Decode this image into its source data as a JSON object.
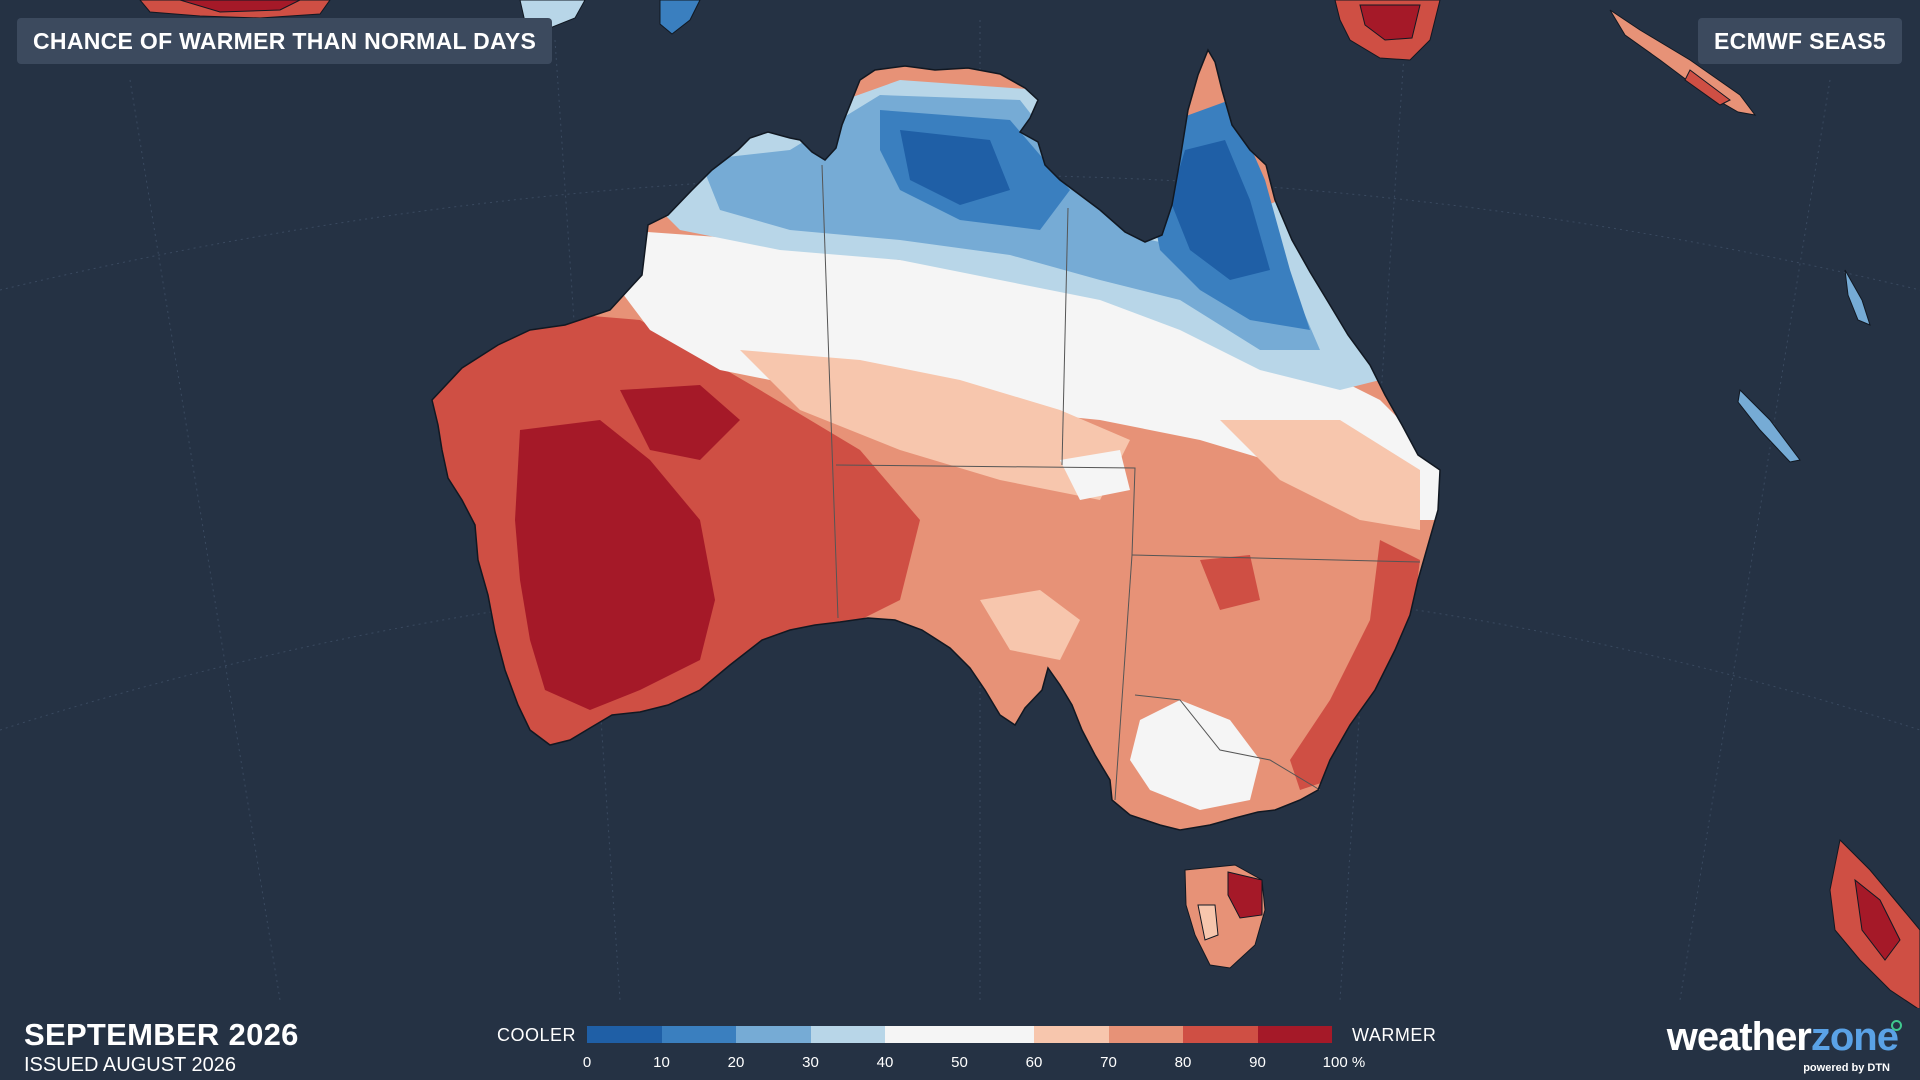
{
  "header": {
    "title": "CHANCE OF WARMER THAN NORMAL DAYS",
    "model": "ECMWF SEAS5"
  },
  "footer": {
    "month": "SEPTEMBER 2026",
    "issued": "ISSUED AUGUST 2026"
  },
  "legend": {
    "cooler_label": "COOLER",
    "warmer_label": "WARMER",
    "ticks": [
      "0",
      "10",
      "20",
      "30",
      "40",
      "50",
      "60",
      "70",
      "80",
      "90",
      "100 %"
    ],
    "bins": [
      {
        "range": "0-10",
        "color": "#1f5fa6"
      },
      {
        "range": "10-20",
        "color": "#3a7fbf"
      },
      {
        "range": "20-30",
        "color": "#76abd5"
      },
      {
        "range": "30-40",
        "color": "#b8d6e8"
      },
      {
        "range": "40-50",
        "color": "#f5f5f5"
      },
      {
        "range": "50-60",
        "color": "#f5f5f5"
      },
      {
        "range": "60-70",
        "color": "#f7c6ad"
      },
      {
        "range": "70-80",
        "color": "#e79277"
      },
      {
        "range": "80-90",
        "color": "#cf4f44"
      },
      {
        "range": "90-100",
        "color": "#a51928"
      }
    ]
  },
  "brand": {
    "logo_part1": "weather",
    "logo_part2": "zone",
    "tagline": "powered by DTN"
  },
  "colors": {
    "ocean": "#253244",
    "badge_bg": "#3c4a5e"
  }
}
